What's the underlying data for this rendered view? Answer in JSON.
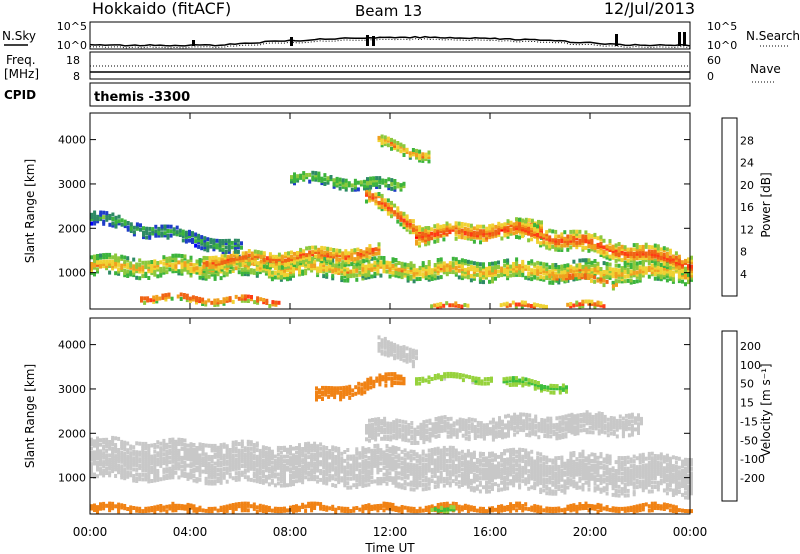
{
  "header": {
    "station": "Hokkaido (fitACF)",
    "beam": "Beam 13",
    "date": "12/Jul/2013"
  },
  "noise_panel": {
    "left_label": "N.Sky",
    "right_label": "N.Search",
    "left_ticks": [
      "10^5",
      "10^0"
    ],
    "right_ticks": [
      "10^5",
      "10^0"
    ]
  },
  "freq_panel": {
    "left_label_line1": "Freq.",
    "left_label_line2": "[MHz]",
    "right_label": "Nave",
    "left_ticks": [
      "18",
      "8"
    ],
    "right_ticks": [
      "60",
      "0"
    ]
  },
  "cpid_panel": {
    "label": "CPID",
    "value": "themis -3300"
  },
  "colors": {
    "power": [
      "#0000ff",
      "#1e3cc8",
      "#2d8a64",
      "#3cb43c",
      "#8cc83c",
      "#f0d232",
      "#f0a01e",
      "#f06414",
      "#ff3c14",
      "#ff0000"
    ],
    "velocity": [
      "#1428c8",
      "#3264b4",
      "#3cbe3c",
      "#96d23c",
      "#c8c8c8",
      "#f0aa28",
      "#f08214",
      "#f05014",
      "#ff0000"
    ]
  },
  "chart_data": [
    {
      "type": "heatmap",
      "title": "",
      "ylabel": "Slant Range [km]",
      "xlabel": "",
      "xlim": [
        "00:00",
        "24:00"
      ],
      "ylim": [
        180,
        4600
      ],
      "x_tick_labels": [
        "00:00",
        "04:00",
        "08:00",
        "12:00",
        "16:00",
        "20:00",
        "00:00"
      ],
      "y_ticks": [
        1000,
        2000,
        3000,
        4000
      ],
      "y_tick_labels": [
        "1000",
        "2000",
        "3000",
        "4000"
      ],
      "colorbar": {
        "label": "Power [dB]",
        "ticks": [
          "4",
          "8",
          "12",
          "16",
          "20",
          "24",
          "28"
        ],
        "range": [
          0,
          32
        ]
      },
      "bands": [
        {
          "start_h": 0.0,
          "end_h": 24.0,
          "r_start": 1200,
          "r_end": 1050,
          "width": 420,
          "value": 20
        },
        {
          "start_h": 4.5,
          "end_h": 11.5,
          "r_start": 1300,
          "r_end": 1500,
          "width": 350,
          "value": 25
        },
        {
          "start_h": 11.0,
          "end_h": 13.5,
          "r_start": 2800,
          "r_end": 1900,
          "width": 320,
          "value": 27
        },
        {
          "start_h": 13.0,
          "end_h": 18.0,
          "r_start": 1900,
          "r_end": 2050,
          "width": 380,
          "value": 27
        },
        {
          "start_h": 17.0,
          "end_h": 24.0,
          "r_start": 2000,
          "r_end": 1250,
          "width": 420,
          "value": 26
        },
        {
          "start_h": 0.0,
          "end_h": 6.0,
          "r_start": 2300,
          "r_end": 1600,
          "width": 300,
          "value": 10
        },
        {
          "start_h": 8.0,
          "end_h": 12.5,
          "r_start": 3200,
          "r_end": 3000,
          "width": 250,
          "value": 14
        },
        {
          "start_h": 11.5,
          "end_h": 13.5,
          "r_start": 4000,
          "r_end": 3700,
          "width": 250,
          "value": 22
        },
        {
          "start_h": 13.0,
          "end_h": 20.5,
          "r_start": 250,
          "r_end": 300,
          "width": 120,
          "value": 28
        },
        {
          "start_h": 2.0,
          "end_h": 7.5,
          "r_start": 500,
          "r_end": 400,
          "width": 150,
          "value": 28
        },
        {
          "start_h": 18.5,
          "end_h": 21.0,
          "r_start": 1000,
          "r_end": 800,
          "width": 150,
          "value": 27
        }
      ]
    },
    {
      "type": "heatmap",
      "title": "",
      "ylabel": "Slant Range [km]",
      "xlabel": "Time UT",
      "xlim": [
        "00:00",
        "24:00"
      ],
      "ylim": [
        180,
        4600
      ],
      "x_tick_labels": [
        "00:00",
        "04:00",
        "08:00",
        "12:00",
        "16:00",
        "20:00",
        "00:00"
      ],
      "y_ticks": [
        1000,
        2000,
        3000,
        4000
      ],
      "y_tick_labels": [
        "1000",
        "2000",
        "3000",
        "4000"
      ],
      "colorbar": {
        "label": "Velocity [m s⁻¹]",
        "ticks": [
          "200",
          "100",
          "50",
          "15",
          "-15",
          "-50",
          "-100",
          "-200"
        ],
        "range": [
          -250,
          250
        ]
      },
      "bands": [
        {
          "start_h": 0.0,
          "end_h": 24.0,
          "r_start": 1500,
          "r_end": 1100,
          "width": 900,
          "value": 0
        },
        {
          "start_h": 11.0,
          "end_h": 22.0,
          "r_start": 2100,
          "r_end": 2300,
          "width": 500,
          "value": 0
        },
        {
          "start_h": 0.0,
          "end_h": 24.0,
          "r_start": 350,
          "r_end": 350,
          "width": 200,
          "value": -60
        },
        {
          "start_h": 9.0,
          "end_h": 12.5,
          "r_start": 2900,
          "r_end": 3300,
          "width": 300,
          "value": -40
        },
        {
          "start_h": 11.5,
          "end_h": 13.0,
          "r_start": 4000,
          "r_end": 3800,
          "width": 400,
          "value": 0
        },
        {
          "start_h": 16.5,
          "end_h": 19.0,
          "r_start": 3200,
          "r_end": 3100,
          "width": 200,
          "value": 40
        },
        {
          "start_h": 13.5,
          "end_h": 14.5,
          "r_start": 280,
          "r_end": 280,
          "width": 120,
          "value": 45
        },
        {
          "start_h": 13.0,
          "end_h": 16.0,
          "r_start": 3300,
          "r_end": 3300,
          "width": 150,
          "value": 35
        }
      ]
    }
  ]
}
